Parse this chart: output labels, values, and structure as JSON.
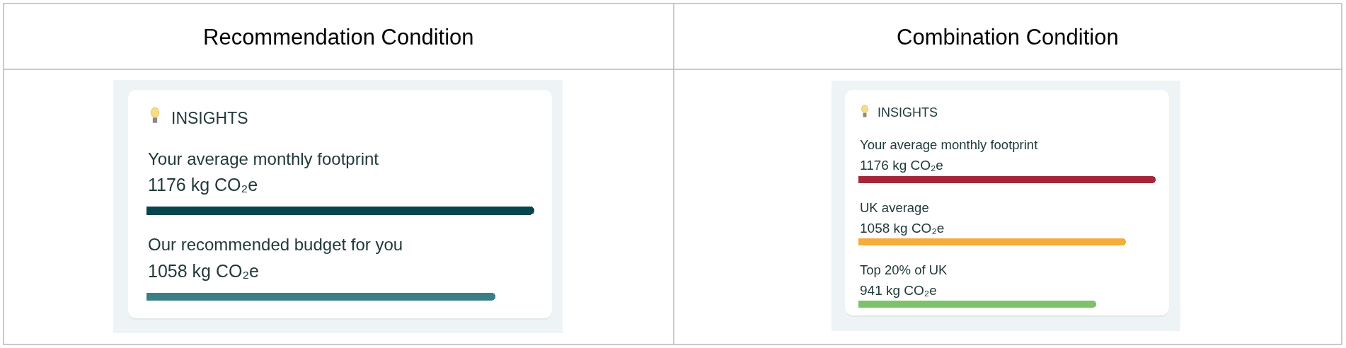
{
  "chart_data": [
    {
      "type": "bar",
      "title": "Recommendation Condition",
      "subtitle": "INSIGHTS",
      "orientation": "horizontal",
      "categories": [
        "Your average monthly footprint",
        "Our recommended budget for you"
      ],
      "values": [
        1176,
        1058
      ],
      "colors": [
        "#05454d",
        "#3b7f86"
      ],
      "value_labels": [
        "1176 kg CO₂e",
        "1058 kg CO₂e"
      ]
    },
    {
      "type": "bar",
      "title": "Combination Condition",
      "subtitle": "INSIGHTS",
      "orientation": "horizontal",
      "categories": [
        "Your average monthly footprint",
        "UK average",
        "Top 20% of UK"
      ],
      "values": [
        1176,
        1058,
        941
      ],
      "colors": [
        "#a52639",
        "#f5ac3c",
        "#7dc26b"
      ],
      "value_labels": [
        "1176 kg CO₂e",
        "1058 kg CO₂e",
        "941 kg CO₂e"
      ]
    }
  ]
}
